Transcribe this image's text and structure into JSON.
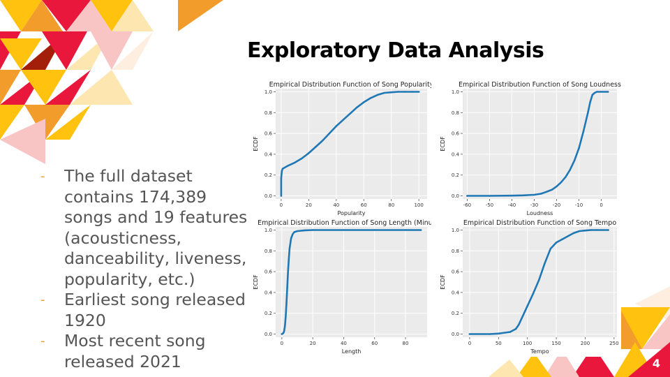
{
  "slide": {
    "title": "Exploratory Data Analysis",
    "page_number": "4",
    "bullets": [
      "The full dataset contains 174,389 songs and 19 features (acousticness, danceability, liveness, popularity, etc.)",
      "Earliest song released 1920",
      "Most recent song released 2021"
    ],
    "colors": {
      "accent": "#f29c2b",
      "red": "#e8173b",
      "yellow": "#ffc20e",
      "pink": "#f8c4c4",
      "plot_bg": "#ebebeb",
      "line": "#1f77b4"
    }
  },
  "chart_data": [
    {
      "type": "line",
      "title": "Empirical Distribution Function of Song Popularity",
      "xlabel": "Popularity",
      "ylabel": "ECDF",
      "xlim": [
        -4,
        106
      ],
      "ylim": [
        -0.03,
        1.03
      ],
      "xticks": [
        0,
        20,
        40,
        60,
        80,
        100
      ],
      "yticks": [
        0.0,
        0.2,
        0.4,
        0.6,
        0.8,
        1.0
      ],
      "grid": true,
      "x": [
        0,
        0,
        0.5,
        1,
        5,
        10,
        15,
        20,
        25,
        30,
        35,
        40,
        45,
        50,
        55,
        60,
        65,
        70,
        75,
        80,
        85,
        90,
        95,
        100
      ],
      "y": [
        0,
        0.17,
        0.24,
        0.26,
        0.29,
        0.32,
        0.36,
        0.41,
        0.47,
        0.53,
        0.6,
        0.67,
        0.73,
        0.79,
        0.85,
        0.9,
        0.94,
        0.97,
        0.99,
        0.995,
        1.0,
        1.0,
        1.0,
        1.0
      ]
    },
    {
      "type": "line",
      "title": "Empirical Distribution Function of Song Loudness",
      "xlabel": "Loudness",
      "ylabel": "ECDF",
      "xlim": [
        -62,
        7
      ],
      "ylim": [
        -0.03,
        1.03
      ],
      "xticks": [
        -60,
        -50,
        -40,
        -30,
        -20,
        -10,
        0
      ],
      "yticks": [
        0.0,
        0.2,
        0.4,
        0.6,
        0.8,
        1.0
      ],
      "grid": true,
      "x": [
        -60,
        -50,
        -40,
        -35,
        -30,
        -27,
        -25,
        -22,
        -20,
        -18,
        -16,
        -14,
        -12,
        -10,
        -8,
        -6,
        -5,
        -4,
        -3,
        -2,
        0,
        3
      ],
      "y": [
        0,
        0,
        0.002,
        0.005,
        0.01,
        0.02,
        0.035,
        0.06,
        0.09,
        0.13,
        0.18,
        0.25,
        0.34,
        0.46,
        0.62,
        0.8,
        0.9,
        0.97,
        0.99,
        1.0,
        1.0,
        1.0
      ]
    },
    {
      "type": "line",
      "title": "Empirical Distribution Function of Song Length (Minutes)",
      "xlabel": "Length",
      "ylabel": "ECDF",
      "xlim": [
        -4,
        94
      ],
      "ylim": [
        -0.03,
        1.03
      ],
      "xticks": [
        0,
        20,
        40,
        60,
        80
      ],
      "yticks": [
        0.0,
        0.2,
        0.4,
        0.6,
        0.8,
        1.0
      ],
      "grid": true,
      "x": [
        0,
        1,
        1.5,
        2,
        2.5,
        3,
        3.5,
        4,
        4.5,
        5,
        6,
        7,
        8,
        10,
        15,
        20,
        40,
        60,
        80,
        90
      ],
      "y": [
        0,
        0.01,
        0.03,
        0.08,
        0.17,
        0.3,
        0.45,
        0.6,
        0.72,
        0.82,
        0.92,
        0.96,
        0.98,
        0.99,
        0.997,
        1.0,
        1.0,
        1.0,
        1.0,
        1.0
      ]
    },
    {
      "type": "line",
      "title": "Empirical Distribution Function of Song Tempo",
      "xlabel": "Tempo",
      "ylabel": "ECDF",
      "xlim": [
        -12,
        255
      ],
      "ylim": [
        -0.03,
        1.03
      ],
      "xticks": [
        0,
        50,
        100,
        150,
        200,
        250
      ],
      "yticks": [
        0.0,
        0.2,
        0.4,
        0.6,
        0.8,
        1.0
      ],
      "grid": true,
      "x": [
        0,
        35,
        50,
        70,
        80,
        85,
        90,
        95,
        100,
        110,
        120,
        130,
        140,
        150,
        160,
        170,
        180,
        190,
        200,
        210,
        220,
        240
      ],
      "y": [
        0,
        0,
        0.005,
        0.02,
        0.05,
        0.09,
        0.15,
        0.21,
        0.27,
        0.39,
        0.52,
        0.68,
        0.82,
        0.88,
        0.91,
        0.94,
        0.97,
        0.99,
        0.995,
        1.0,
        1.0,
        1.0
      ]
    }
  ]
}
